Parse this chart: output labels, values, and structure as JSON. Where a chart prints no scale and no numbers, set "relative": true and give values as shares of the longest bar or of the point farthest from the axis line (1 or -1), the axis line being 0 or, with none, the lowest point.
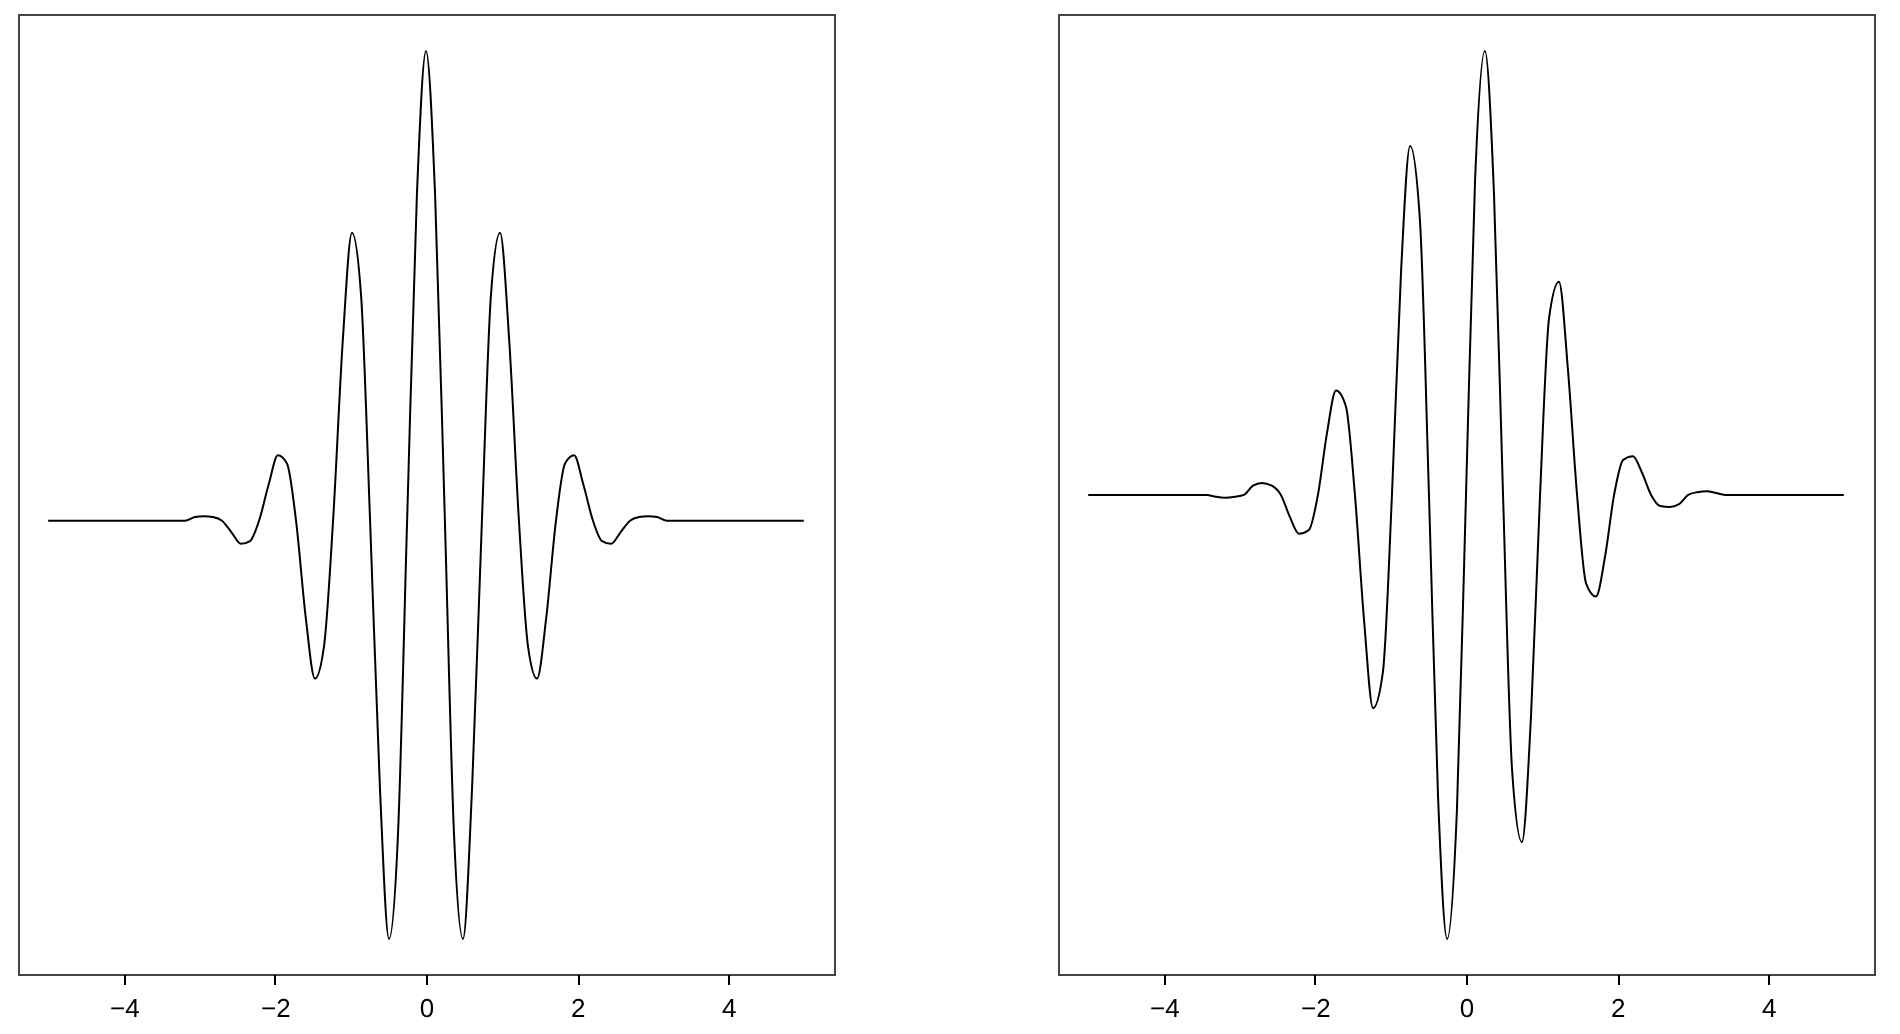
{
  "chart_data": [
    {
      "type": "line",
      "relative": true,
      "color": "#000000",
      "xlim": [
        -5.4,
        5.4
      ],
      "xticks": [
        -4,
        -2,
        0,
        2,
        4
      ],
      "tick_labels": "x",
      "x": [
        -5,
        -3.5,
        -3.19,
        -3.06,
        -2.94,
        -2.82,
        -2.7,
        -2.57,
        -2.45,
        -2.33,
        -2.21,
        -2.08,
        -1.96,
        -1.84,
        -1.72,
        -1.59,
        -1.47,
        -1.35,
        -1.23,
        -1.1,
        -0.98,
        -0.86,
        -0.74,
        -0.61,
        -0.49,
        -0.37,
        -0.25,
        -0.12,
        0,
        0.12,
        0.25,
        0.37,
        0.49,
        0.61,
        0.74,
        0.86,
        0.98,
        1.1,
        1.23,
        1.35,
        1.47,
        1.59,
        1.72,
        1.84,
        1.96,
        2.08,
        2.21,
        2.33,
        2.45,
        2.57,
        2.7,
        2.82,
        2.94,
        3.06,
        3.19,
        3.5,
        5
      ],
      "values": [
        0.491,
        0.491,
        0.491,
        0.495,
        0.496,
        0.495,
        0.491,
        0.478,
        0.466,
        0.469,
        0.491,
        0.531,
        0.562,
        0.553,
        0.491,
        0.385,
        0.32,
        0.355,
        0.491,
        0.688,
        0.803,
        0.736,
        0.491,
        0.202,
        0.038,
        0.153,
        0.491,
        0.845,
        1,
        0.845,
        0.491,
        0.153,
        0.038,
        0.202,
        0.491,
        0.736,
        0.803,
        0.688,
        0.491,
        0.355,
        0.32,
        0.385,
        0.491,
        0.553,
        0.562,
        0.531,
        0.491,
        0.469,
        0.466,
        0.478,
        0.491,
        0.495,
        0.496,
        0.495,
        0.491,
        0.491,
        0.491
      ]
    },
    {
      "type": "line",
      "relative": true,
      "color": "#000000",
      "xlim": [
        -5.4,
        5.4
      ],
      "xticks": [
        -4,
        -2,
        0,
        2,
        4
      ],
      "tick_labels": "x",
      "x": [
        -5,
        -3.43,
        -3.31,
        -3.19,
        -3.06,
        -2.94,
        -2.82,
        -2.7,
        -2.57,
        -2.45,
        -2.33,
        -2.21,
        -2.08,
        -1.96,
        -1.84,
        -1.72,
        -1.59,
        -1.47,
        -1.35,
        -1.23,
        -1.1,
        -0.98,
        -0.86,
        -0.74,
        -0.61,
        -0.49,
        -0.37,
        -0.25,
        -0.12,
        0,
        0.12,
        0.25,
        0.37,
        0.49,
        0.61,
        0.74,
        0.86,
        0.98,
        1.1,
        1.23,
        1.35,
        1.47,
        1.59,
        1.72,
        1.84,
        1.96,
        2.08,
        2.21,
        2.33,
        2.45,
        2.57,
        2.7,
        2.82,
        2.94,
        3.06,
        3.19,
        3.31,
        3.43,
        5
      ],
      "values": [
        0.519,
        0.519,
        0.517,
        0.516,
        0.517,
        0.519,
        0.529,
        0.532,
        0.529,
        0.519,
        0.495,
        0.477,
        0.481,
        0.519,
        0.586,
        0.632,
        0.615,
        0.519,
        0.384,
        0.288,
        0.327,
        0.519,
        0.76,
        0.897,
        0.817,
        0.519,
        0.192,
        0.038,
        0.178,
        0.519,
        0.86,
        1,
        0.846,
        0.519,
        0.221,
        0.143,
        0.279,
        0.519,
        0.711,
        0.75,
        0.654,
        0.519,
        0.423,
        0.409,
        0.452,
        0.519,
        0.557,
        0.561,
        0.543,
        0.519,
        0.507,
        0.506,
        0.509,
        0.519,
        0.522,
        0.523,
        0.521,
        0.519,
        0.519
      ]
    }
  ]
}
